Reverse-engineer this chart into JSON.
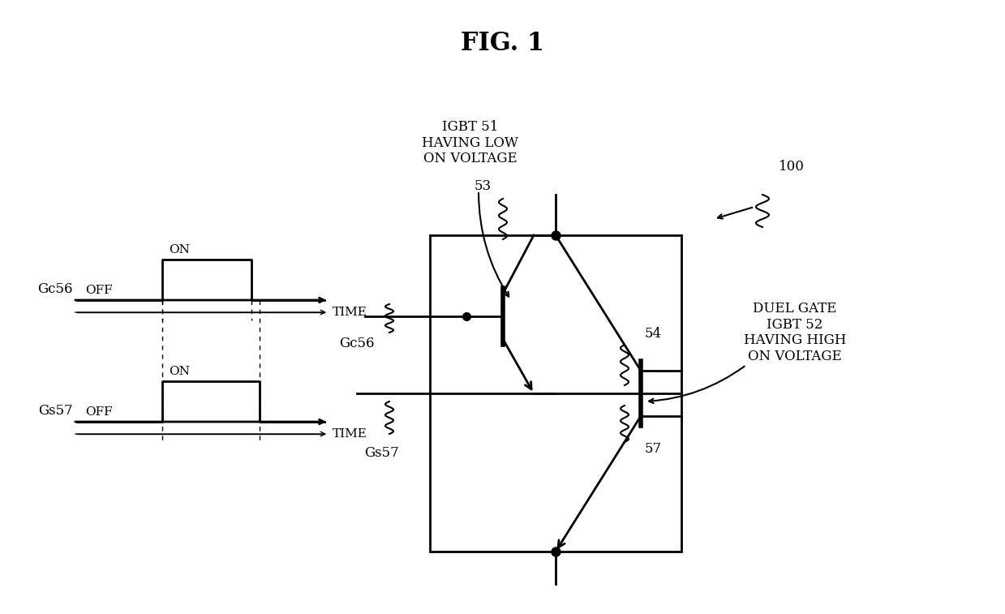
{
  "title": "FIG. 1",
  "bg_color": "#ffffff",
  "fig_width": 12.39,
  "fig_height": 7.57,
  "title_fontsize": 22,
  "label_fontsize": 12,
  "igbt51_text": "IGBT 51\nHAVING LOW\nON VOLTAGE",
  "igbt52_text": "DUEL GATE\nIGBT 52\nHAVING HIGH\nON VOLTAGE",
  "ref100": "100",
  "ref53": "53",
  "ref54": "54",
  "ref57": "57",
  "gc56_label": "Gc56",
  "gs57_label": "Gs57",
  "time_label": "TIME",
  "on_label": "ON",
  "off_label": "OFF"
}
